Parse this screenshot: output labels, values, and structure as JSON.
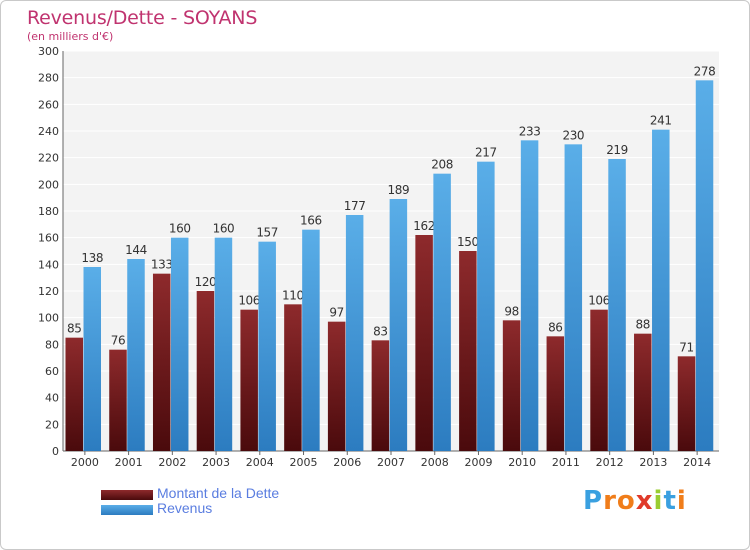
{
  "title": "Revenus/Dette - SOYANS",
  "subtitle": "(en milliers d'€)",
  "chart_data": {
    "type": "bar",
    "title": "Revenus/Dette - SOYANS",
    "subtitle": "(en milliers d'€)",
    "categories": [
      "2000",
      "2001",
      "2002",
      "2003",
      "2004",
      "2005",
      "2006",
      "2007",
      "2008",
      "2009",
      "2010",
      "2011",
      "2012",
      "2013",
      "2014"
    ],
    "series": [
      {
        "name": "Montant de la Dette",
        "color": "#7a1a1e",
        "values": [
          85,
          76,
          133,
          120,
          106,
          110,
          97,
          83,
          162,
          150,
          98,
          86,
          106,
          88,
          71
        ]
      },
      {
        "name": "Revenus",
        "color": "#4f9fe0",
        "values": [
          138,
          144,
          160,
          160,
          157,
          166,
          177,
          189,
          208,
          217,
          233,
          230,
          219,
          241,
          278
        ]
      }
    ],
    "ylim": [
      0,
      300
    ],
    "ytick_step": 20,
    "grid": true,
    "legend": "bottom-left"
  },
  "logo": {
    "text": "Proxiti",
    "letters": [
      "P",
      "r",
      "o",
      "x",
      "i",
      "t",
      "i"
    ],
    "colors": [
      "#3aa0e0",
      "#f07d1a",
      "#f07d1a",
      "#e03a2a",
      "#9acd32",
      "#3aa0e0",
      "#f07d1a"
    ]
  }
}
